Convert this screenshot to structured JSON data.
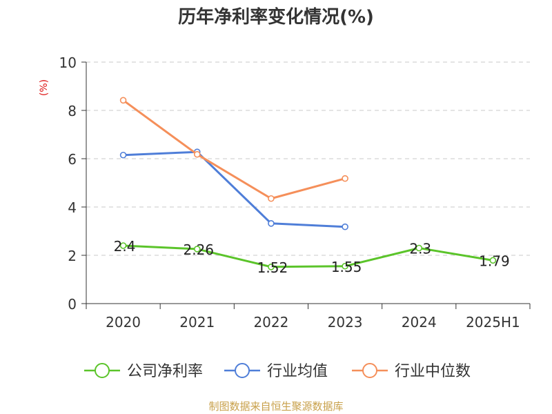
{
  "chart_data": {
    "type": "line",
    "title": "历年净利率变化情况(%)",
    "ylabel": "(%)",
    "xlabel": "",
    "ylim": [
      0,
      10
    ],
    "yticks": [
      0,
      2,
      4,
      6,
      8,
      10
    ],
    "categories": [
      "2020",
      "2021",
      "2022",
      "2023",
      "2024",
      "2025H1"
    ],
    "grid": true,
    "legend": "bottom",
    "series": [
      {
        "name": "公司净利率",
        "color": "#5bc42a",
        "values": [
          2.4,
          2.26,
          1.52,
          1.55,
          2.3,
          1.79
        ],
        "labels": [
          "2.4",
          "2.26",
          "1.52",
          "1.55",
          "2.3",
          "1.79"
        ]
      },
      {
        "name": "行业均值",
        "color": "#4f7ed8",
        "values": [
          6.15,
          6.28,
          3.32,
          3.18,
          null,
          null
        ],
        "labels": []
      },
      {
        "name": "行业中位数",
        "color": "#f58f5a",
        "values": [
          8.42,
          6.18,
          4.35,
          5.18,
          null,
          null
        ],
        "labels": []
      }
    ]
  },
  "source": "制图数据来自恒生聚源数据库"
}
